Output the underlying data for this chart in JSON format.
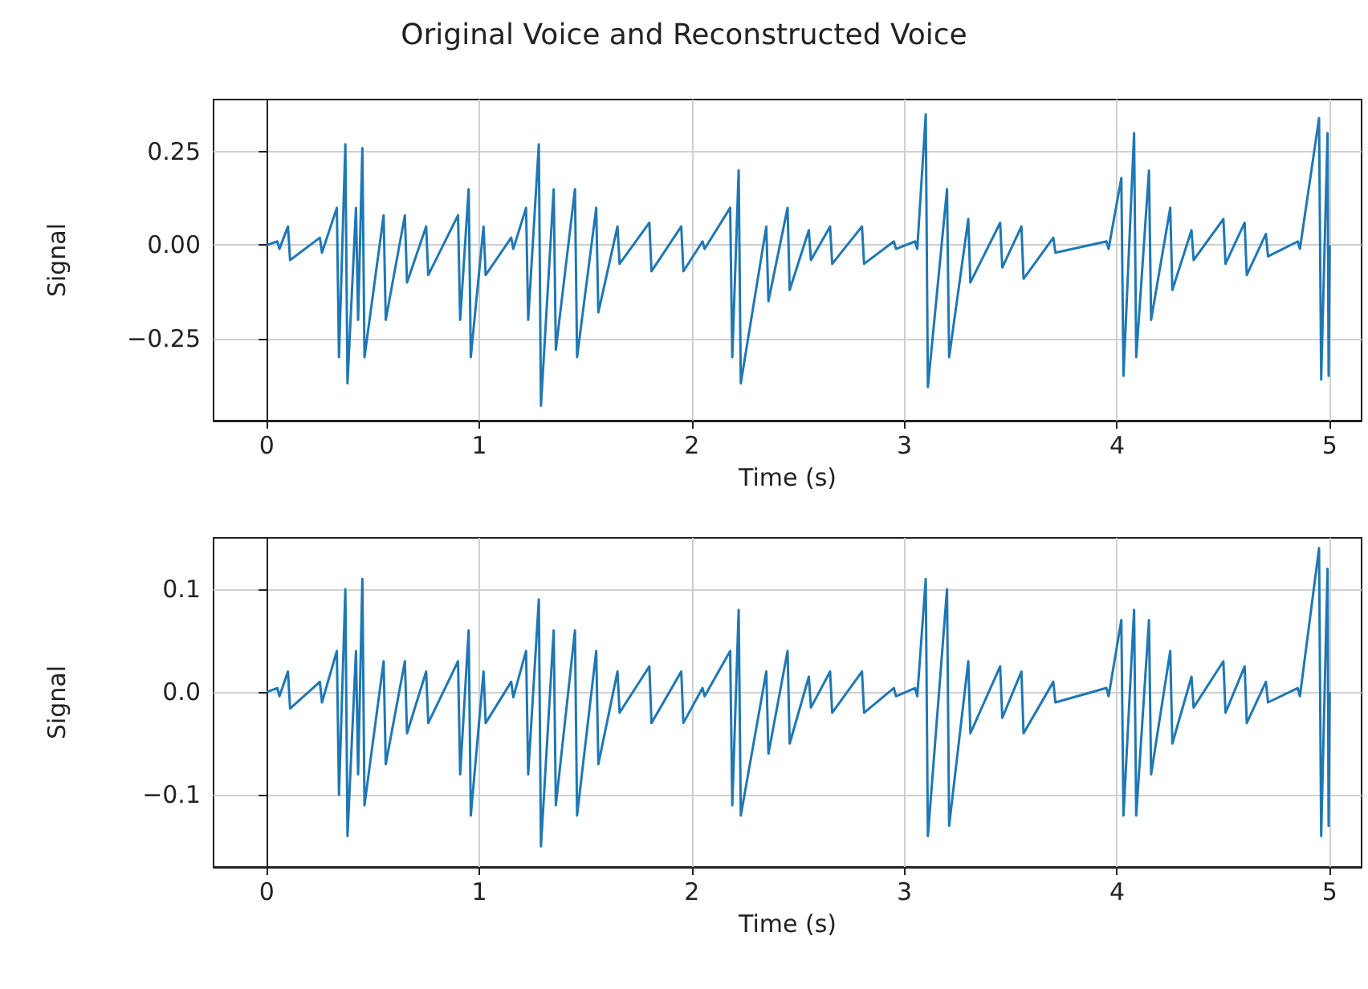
{
  "chart_data": [
    {
      "type": "line",
      "title": "Original Voice and Reconstructed Voice",
      "xlabel": "Time (s)",
      "ylabel": "Signal",
      "grid": true,
      "marker": "none",
      "line_style": "solid",
      "x": [
        0,
        0.05,
        0.06,
        0.1,
        0.11,
        0.25,
        0.26,
        0.33,
        0.34,
        0.37,
        0.38,
        0.42,
        0.43,
        0.45,
        0.46,
        0.55,
        0.56,
        0.65,
        0.66,
        0.75,
        0.76,
        0.9,
        0.91,
        0.95,
        0.96,
        1.02,
        1.03,
        1.15,
        1.16,
        1.22,
        1.23,
        1.28,
        1.29,
        1.35,
        1.36,
        1.45,
        1.46,
        1.55,
        1.56,
        1.65,
        1.66,
        1.8,
        1.81,
        1.95,
        1.96,
        2.05,
        2.06,
        2.18,
        2.19,
        2.22,
        2.23,
        2.35,
        2.36,
        2.45,
        2.46,
        2.55,
        2.56,
        2.65,
        2.66,
        2.8,
        2.81,
        2.95,
        2.96,
        3.05,
        3.06,
        3.1,
        3.11,
        3.2,
        3.21,
        3.3,
        3.31,
        3.45,
        3.46,
        3.55,
        3.56,
        3.7,
        3.71,
        3.95,
        3.96,
        4.02,
        4.03,
        4.08,
        4.09,
        4.15,
        4.16,
        4.25,
        4.26,
        4.35,
        4.36,
        4.5,
        4.51,
        4.6,
        4.61,
        4.7,
        4.71,
        4.85,
        4.86,
        4.95,
        4.96,
        4.99,
        4.995,
        5.0
      ],
      "series": [
        {
          "color": "#1f77b4",
          "values": [
            0,
            0.01,
            -0.01,
            0.05,
            -0.04,
            0.02,
            -0.02,
            0.1,
            -0.3,
            0.27,
            -0.37,
            0.1,
            -0.2,
            0.26,
            -0.3,
            0.08,
            -0.2,
            0.08,
            -0.1,
            0.05,
            -0.08,
            0.08,
            -0.2,
            0.15,
            -0.3,
            0.05,
            -0.08,
            0.02,
            -0.01,
            0.1,
            -0.2,
            0.27,
            -0.43,
            0.15,
            -0.28,
            0.15,
            -0.3,
            0.1,
            -0.18,
            0.05,
            -0.05,
            0.06,
            -0.07,
            0.05,
            -0.07,
            0.01,
            -0.01,
            0.1,
            -0.3,
            0.2,
            -0.37,
            0.05,
            -0.15,
            0.1,
            -0.12,
            0.04,
            -0.04,
            0.05,
            -0.05,
            0.05,
            -0.05,
            0.01,
            -0.01,
            0.01,
            -0.01,
            0.35,
            -0.38,
            0.15,
            -0.3,
            0.07,
            -0.1,
            0.06,
            -0.06,
            0.05,
            -0.09,
            0.02,
            -0.02,
            0.01,
            -0.01,
            0.18,
            -0.35,
            0.3,
            -0.3,
            0.2,
            -0.2,
            0.1,
            -0.12,
            0.04,
            -0.04,
            0.07,
            -0.05,
            0.06,
            -0.08,
            0.03,
            -0.03,
            0.01,
            -0.01,
            0.34,
            -0.36,
            0.3,
            -0.35,
            0
          ]
        }
      ],
      "xlim": [
        -0.25,
        5.15
      ],
      "xticks": [
        0,
        1,
        2,
        3,
        4,
        5
      ],
      "ylim": [
        -0.47,
        0.39
      ],
      "yticks": [
        {
          "value": -0.25,
          "label": "−0.25"
        },
        {
          "value": 0,
          "label": "0.00"
        },
        {
          "value": 0.25,
          "label": "0.25"
        }
      ]
    },
    {
      "type": "line",
      "xlabel": "Time (s)",
      "ylabel": "Signal",
      "grid": true,
      "marker": "none",
      "line_style": "solid",
      "x": [
        0,
        0.05,
        0.06,
        0.1,
        0.11,
        0.25,
        0.26,
        0.33,
        0.34,
        0.37,
        0.38,
        0.42,
        0.43,
        0.45,
        0.46,
        0.55,
        0.56,
        0.65,
        0.66,
        0.75,
        0.76,
        0.9,
        0.91,
        0.95,
        0.96,
        1.02,
        1.03,
        1.15,
        1.16,
        1.22,
        1.23,
        1.28,
        1.29,
        1.35,
        1.36,
        1.45,
        1.46,
        1.55,
        1.56,
        1.65,
        1.66,
        1.8,
        1.81,
        1.95,
        1.96,
        2.05,
        2.06,
        2.18,
        2.19,
        2.22,
        2.23,
        2.35,
        2.36,
        2.45,
        2.46,
        2.55,
        2.56,
        2.65,
        2.66,
        2.8,
        2.81,
        2.95,
        2.96,
        3.05,
        3.06,
        3.1,
        3.11,
        3.2,
        3.21,
        3.3,
        3.31,
        3.45,
        3.46,
        3.55,
        3.56,
        3.7,
        3.71,
        3.95,
        3.96,
        4.02,
        4.03,
        4.08,
        4.09,
        4.15,
        4.16,
        4.25,
        4.26,
        4.35,
        4.36,
        4.5,
        4.51,
        4.6,
        4.61,
        4.7,
        4.71,
        4.85,
        4.86,
        4.95,
        4.96,
        4.99,
        4.995,
        5.0
      ],
      "series": [
        {
          "color": "#1f77b4",
          "values": [
            0,
            0.004,
            -0.004,
            0.02,
            -0.016,
            0.01,
            -0.01,
            0.04,
            -0.1,
            0.1,
            -0.14,
            0.04,
            -0.08,
            0.11,
            -0.11,
            0.03,
            -0.07,
            0.03,
            -0.04,
            0.02,
            -0.03,
            0.03,
            -0.08,
            0.06,
            -0.12,
            0.02,
            -0.03,
            0.01,
            -0.005,
            0.04,
            -0.08,
            0.09,
            -0.15,
            0.06,
            -0.11,
            0.06,
            -0.12,
            0.04,
            -0.07,
            0.02,
            -0.02,
            0.025,
            -0.03,
            0.02,
            -0.03,
            0.004,
            -0.004,
            0.04,
            -0.11,
            0.08,
            -0.12,
            0.02,
            -0.06,
            0.04,
            -0.05,
            0.015,
            -0.015,
            0.02,
            -0.02,
            0.02,
            -0.02,
            0.004,
            -0.004,
            0.004,
            -0.004,
            0.11,
            -0.14,
            0.1,
            -0.13,
            0.03,
            -0.04,
            0.025,
            -0.025,
            0.02,
            -0.04,
            0.01,
            -0.01,
            0.004,
            -0.004,
            0.07,
            -0.12,
            0.08,
            -0.12,
            0.07,
            -0.08,
            0.04,
            -0.05,
            0.015,
            -0.015,
            0.03,
            -0.02,
            0.025,
            -0.03,
            0.01,
            -0.01,
            0.004,
            -0.004,
            0.14,
            -0.14,
            0.12,
            -0.13,
            0
          ]
        }
      ],
      "xlim": [
        -0.25,
        5.15
      ],
      "xticks": [
        0,
        1,
        2,
        3,
        4,
        5
      ],
      "ylim": [
        -0.17,
        0.15
      ],
      "yticks": [
        {
          "value": -0.1,
          "label": "−0.1"
        },
        {
          "value": 0,
          "label": "0.0"
        },
        {
          "value": 0.1,
          "label": "0.1"
        }
      ]
    }
  ]
}
